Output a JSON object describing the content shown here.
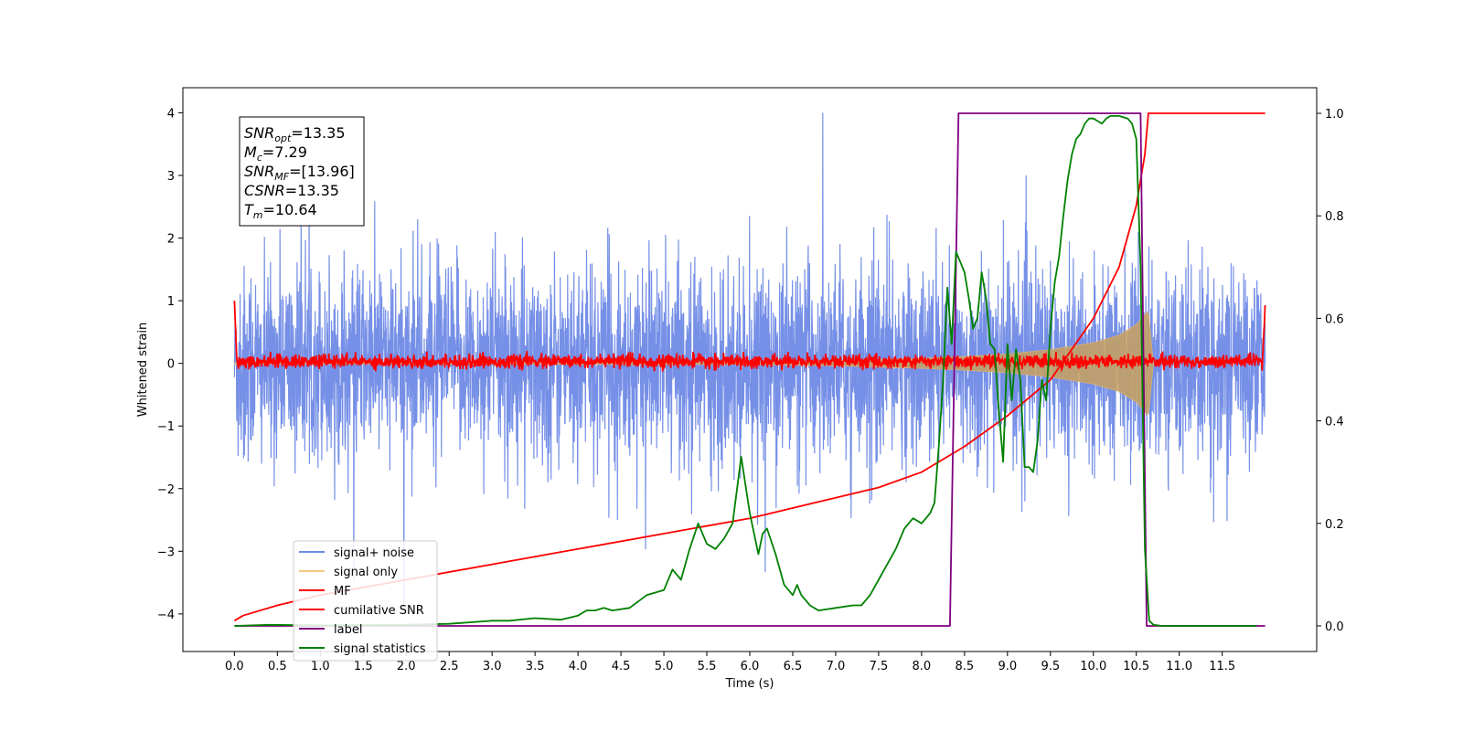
{
  "chart_data": {
    "type": "line",
    "title": "",
    "xlabel": "Time (s)",
    "ylabel": "Whitened strain",
    "ylabel_right": "",
    "xlim": [
      -0.6,
      12.6
    ],
    "ylim": [
      -4.6,
      4.4
    ],
    "ylim_right": [
      -0.05,
      1.05
    ],
    "x_ticks": [
      0.0,
      0.5,
      1.0,
      1.5,
      2.0,
      2.5,
      3.0,
      3.5,
      4.0,
      4.5,
      5.0,
      5.5,
      6.0,
      6.5,
      7.0,
      7.5,
      8.0,
      8.5,
      9.0,
      9.5,
      10.0,
      10.5,
      11.0,
      11.5
    ],
    "x_tick_labels": [
      "0.0",
      "0.5",
      "1.0",
      "1.5",
      "2.0",
      "2.5",
      "3.0",
      "3.5",
      "4.0",
      "4.5",
      "5.0",
      "5.5",
      "6.0",
      "6.5",
      "7.0",
      "7.5",
      "8.0",
      "8.5",
      "9.0",
      "9.5",
      "10.0",
      "10.5",
      "11.0",
      "11.5"
    ],
    "y_ticks": [
      -4,
      -3,
      -2,
      -1,
      0,
      1,
      2,
      3,
      4
    ],
    "y_tick_labels": [
      "−4",
      "−3",
      "−2",
      "−1",
      "0",
      "1",
      "2",
      "3",
      "4"
    ],
    "y_ticks_right": [
      0.0,
      0.2,
      0.4,
      0.6,
      0.8,
      1.0
    ],
    "y_tick_labels_right": [
      "0.0",
      "0.2",
      "0.4",
      "0.6",
      "0.8",
      "1.0"
    ],
    "grid": false,
    "legend_position": "lower-left",
    "series": [
      {
        "name": "signal+ noise",
        "axis": "left",
        "color": "#6f8ae6",
        "kind": "noise-band",
        "x_range": [
          0.0,
          12.0
        ],
        "typical_amplitude": 1.5,
        "peak_amplitude": 4.0
      },
      {
        "name": "signal only",
        "axis": "left",
        "color": "#e3b86d",
        "kind": "chirp-envelope",
        "x": [
          0.0,
          6.0,
          7.0,
          7.5,
          8.0,
          8.5,
          9.0,
          9.5,
          10.0,
          10.3,
          10.5,
          10.6,
          10.64,
          10.7
        ],
        "y": [
          0.01,
          0.02,
          0.04,
          0.06,
          0.08,
          0.11,
          0.15,
          0.22,
          0.33,
          0.45,
          0.62,
          0.78,
          0.85,
          0.0
        ]
      },
      {
        "name": "MF",
        "axis": "left",
        "color": "#ff0000",
        "kind": "noise-band",
        "x_range": [
          0.0,
          12.0
        ],
        "typical_amplitude": 0.08,
        "peak_amplitude": 0.2,
        "edge_values": [
          1.0,
          0.93
        ]
      },
      {
        "name": "cumilative SNR",
        "axis": "right",
        "color": "#ff0000",
        "x": [
          0.0,
          0.1,
          0.5,
          1.0,
          2.0,
          3.0,
          4.0,
          5.0,
          6.0,
          7.0,
          7.5,
          8.0,
          8.5,
          9.0,
          9.5,
          10.0,
          10.3,
          10.5,
          10.6,
          10.64,
          10.7,
          11.0,
          12.0
        ],
        "y": [
          0.01,
          0.02,
          0.04,
          0.06,
          0.09,
          0.12,
          0.15,
          0.18,
          0.21,
          0.25,
          0.27,
          0.3,
          0.35,
          0.41,
          0.48,
          0.6,
          0.7,
          0.82,
          0.92,
          1.0,
          1.0,
          1.0,
          1.0
        ]
      },
      {
        "name": "label",
        "axis": "right",
        "color": "#800080",
        "x": [
          0.0,
          8.33,
          8.43,
          10.55,
          10.62,
          10.7,
          12.0
        ],
        "y": [
          0.0,
          0.0,
          1.0,
          1.0,
          0.0,
          0.0,
          0.0
        ]
      },
      {
        "name": "signal statistics",
        "axis": "right",
        "color": "#008000",
        "x": [
          0.0,
          0.4,
          1.0,
          2.0,
          2.5,
          3.0,
          3.2,
          3.5,
          3.8,
          4.0,
          4.1,
          4.2,
          4.3,
          4.4,
          4.6,
          4.8,
          4.9,
          5.0,
          5.1,
          5.2,
          5.3,
          5.4,
          5.5,
          5.6,
          5.7,
          5.8,
          5.9,
          6.0,
          6.05,
          6.1,
          6.15,
          6.2,
          6.3,
          6.4,
          6.5,
          6.55,
          6.6,
          6.7,
          6.8,
          7.0,
          7.2,
          7.3,
          7.4,
          7.5,
          7.6,
          7.7,
          7.8,
          7.9,
          8.0,
          8.1,
          8.15,
          8.2,
          8.25,
          8.3,
          8.35,
          8.4,
          8.45,
          8.5,
          8.55,
          8.6,
          8.65,
          8.7,
          8.75,
          8.8,
          8.85,
          8.9,
          8.95,
          9.0,
          9.05,
          9.1,
          9.15,
          9.2,
          9.25,
          9.3,
          9.35,
          9.4,
          9.45,
          9.5,
          9.55,
          9.6,
          9.65,
          9.7,
          9.75,
          9.8,
          9.85,
          9.9,
          9.95,
          10.0,
          10.05,
          10.1,
          10.15,
          10.2,
          10.3,
          10.4,
          10.45,
          10.5,
          10.55,
          10.6,
          10.65,
          10.7,
          10.8,
          11.0,
          11.5,
          11.9
        ],
        "y": [
          0.0,
          0.002,
          0.001,
          0.002,
          0.004,
          0.01,
          0.01,
          0.015,
          0.012,
          0.02,
          0.03,
          0.03,
          0.035,
          0.03,
          0.035,
          0.06,
          0.065,
          0.07,
          0.11,
          0.09,
          0.15,
          0.2,
          0.16,
          0.15,
          0.17,
          0.2,
          0.33,
          0.22,
          0.18,
          0.14,
          0.18,
          0.19,
          0.14,
          0.08,
          0.06,
          0.08,
          0.06,
          0.04,
          0.03,
          0.035,
          0.04,
          0.04,
          0.06,
          0.09,
          0.12,
          0.15,
          0.19,
          0.21,
          0.2,
          0.22,
          0.24,
          0.35,
          0.48,
          0.66,
          0.55,
          0.73,
          0.71,
          0.69,
          0.64,
          0.58,
          0.6,
          0.69,
          0.64,
          0.55,
          0.54,
          0.42,
          0.32,
          0.55,
          0.44,
          0.54,
          0.48,
          0.31,
          0.31,
          0.3,
          0.36,
          0.48,
          0.44,
          0.58,
          0.67,
          0.72,
          0.8,
          0.87,
          0.92,
          0.95,
          0.96,
          0.98,
          0.99,
          0.99,
          0.985,
          0.98,
          0.99,
          0.995,
          0.995,
          0.99,
          0.98,
          0.95,
          0.7,
          0.15,
          0.01,
          0.002,
          0.0,
          0.0,
          0.0,
          0.0
        ]
      }
    ],
    "info_box": [
      {
        "sym": "SNR",
        "sub": "opt",
        "value": "=13.35"
      },
      {
        "sym": "M",
        "sub": "c",
        "value": "=7.29"
      },
      {
        "sym": "SNR",
        "sub": "MF",
        "value": "=[13.96]"
      },
      {
        "sym": "CSNR",
        "sub": "",
        "value": "=13.35"
      },
      {
        "sym": "T",
        "sub": "m",
        "value": "=10.64"
      }
    ]
  }
}
